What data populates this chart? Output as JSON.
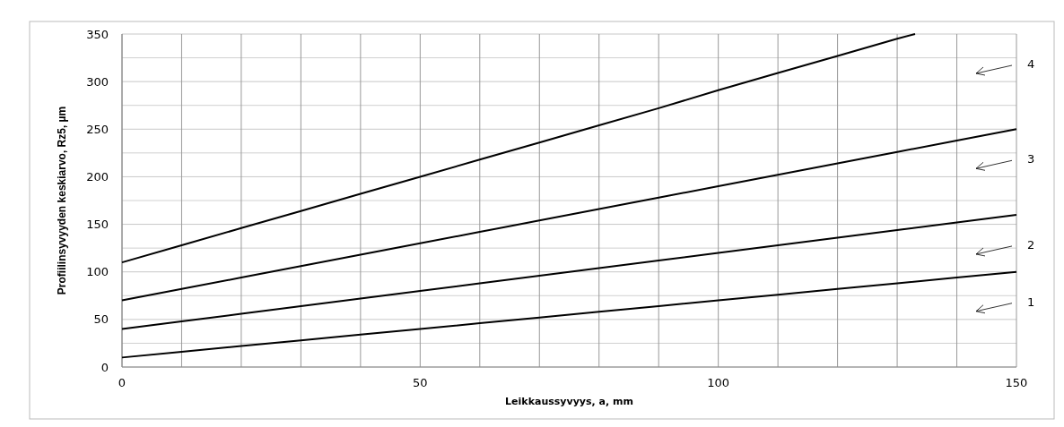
{
  "chart_data": {
    "type": "line",
    "xlabel": "Leikkaussyvyys,  a, mm",
    "ylabel": "Profiilinsyvyyden  keskiarvo, Rz5, µm",
    "xlim": [
      0,
      150
    ],
    "ylim": [
      0,
      350
    ],
    "xticks": [
      0,
      {
        "value": 10,
        "label": null
      },
      {
        "value": 20,
        "label": null
      },
      {
        "value": 30,
        "label": null
      },
      {
        "value": 40,
        "label": null
      },
      50,
      {
        "value": 60,
        "label": null
      },
      {
        "value": 70,
        "label": null
      },
      {
        "value": 80,
        "label": null
      },
      {
        "value": 90,
        "label": null
      },
      100,
      {
        "value": 110,
        "label": null
      },
      {
        "value": 120,
        "label": null
      },
      {
        "value": 130,
        "label": null
      },
      {
        "value": 140,
        "label": null
      },
      150
    ],
    "yticks": [
      0,
      {
        "value": 25,
        "label": null
      },
      50,
      {
        "value": 75,
        "label": null
      },
      100,
      {
        "value": 125,
        "label": null
      },
      150,
      {
        "value": 175,
        "label": null
      },
      200,
      {
        "value": 225,
        "label": null
      },
      250,
      {
        "value": 275,
        "label": null
      },
      300,
      {
        "value": 325,
        "label": null
      },
      350
    ],
    "grid": true,
    "legend": "right",
    "marker": "none",
    "line_style": "solid",
    "series": [
      {
        "name": "1",
        "color": "#000000",
        "x": [
          0,
          10,
          20,
          30,
          40,
          50,
          60,
          70,
          80,
          90,
          100,
          110,
          120,
          130,
          140,
          150
        ],
        "values": [
          10,
          16,
          22,
          28,
          34,
          40,
          46,
          52,
          58,
          64,
          70,
          76,
          82,
          88,
          94,
          100
        ]
      },
      {
        "name": "2",
        "color": "#000000",
        "x": [
          0,
          10,
          20,
          30,
          40,
          50,
          60,
          70,
          80,
          90,
          100,
          110,
          120,
          130,
          140,
          150
        ],
        "values": [
          40,
          48,
          56,
          64,
          72,
          80,
          88,
          96,
          104,
          112,
          120,
          128,
          136,
          144,
          152,
          160
        ]
      },
      {
        "name": "3",
        "color": "#000000",
        "x": [
          0,
          10,
          20,
          30,
          40,
          50,
          60,
          70,
          80,
          90,
          100,
          110,
          120,
          130,
          140,
          150
        ],
        "values": [
          70,
          82,
          94,
          106,
          118,
          130,
          142,
          154,
          166,
          178,
          190,
          202,
          214,
          226,
          238,
          250
        ]
      },
      {
        "name": "4",
        "color": "#000000",
        "x": [
          0,
          10,
          20,
          30,
          40,
          50,
          60,
          70,
          80,
          90,
          100,
          110,
          120,
          130,
          133
        ],
        "values": [
          110,
          128,
          146,
          164,
          182,
          200,
          218,
          236,
          254,
          272,
          291,
          309,
          327,
          345,
          350
        ]
      }
    ]
  }
}
